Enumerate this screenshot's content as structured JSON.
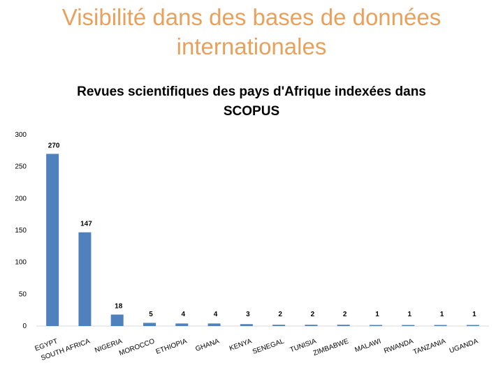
{
  "slide": {
    "title_line1": "Visibilité dans des bases de données",
    "title_line2": "internationales"
  },
  "chart_data": {
    "type": "bar",
    "title_line1": "Revues scientifiques des pays d'Afrique indexées dans",
    "title_line2": "SCOPUS",
    "categories": [
      "EGYPT",
      "SOUTH AFRICA",
      "NIGERIA",
      "MOROCCO",
      "ETHIOPIA",
      "GHANA",
      "KENYA",
      "SENEGAL",
      "TUNISIA",
      "ZIMBABWE",
      "MALAWI",
      "RWANDA",
      "TANZANIA",
      "UGANDA"
    ],
    "values": [
      270,
      147,
      18,
      5,
      4,
      4,
      3,
      2,
      2,
      2,
      1,
      1,
      1,
      1
    ],
    "ylim": [
      0,
      300
    ],
    "yticks": [
      "0",
      "50",
      "100",
      "150",
      "200",
      "250",
      "300"
    ],
    "bar_color": "#4f81bd",
    "grid": false,
    "legend": "none",
    "data_labels": true
  }
}
